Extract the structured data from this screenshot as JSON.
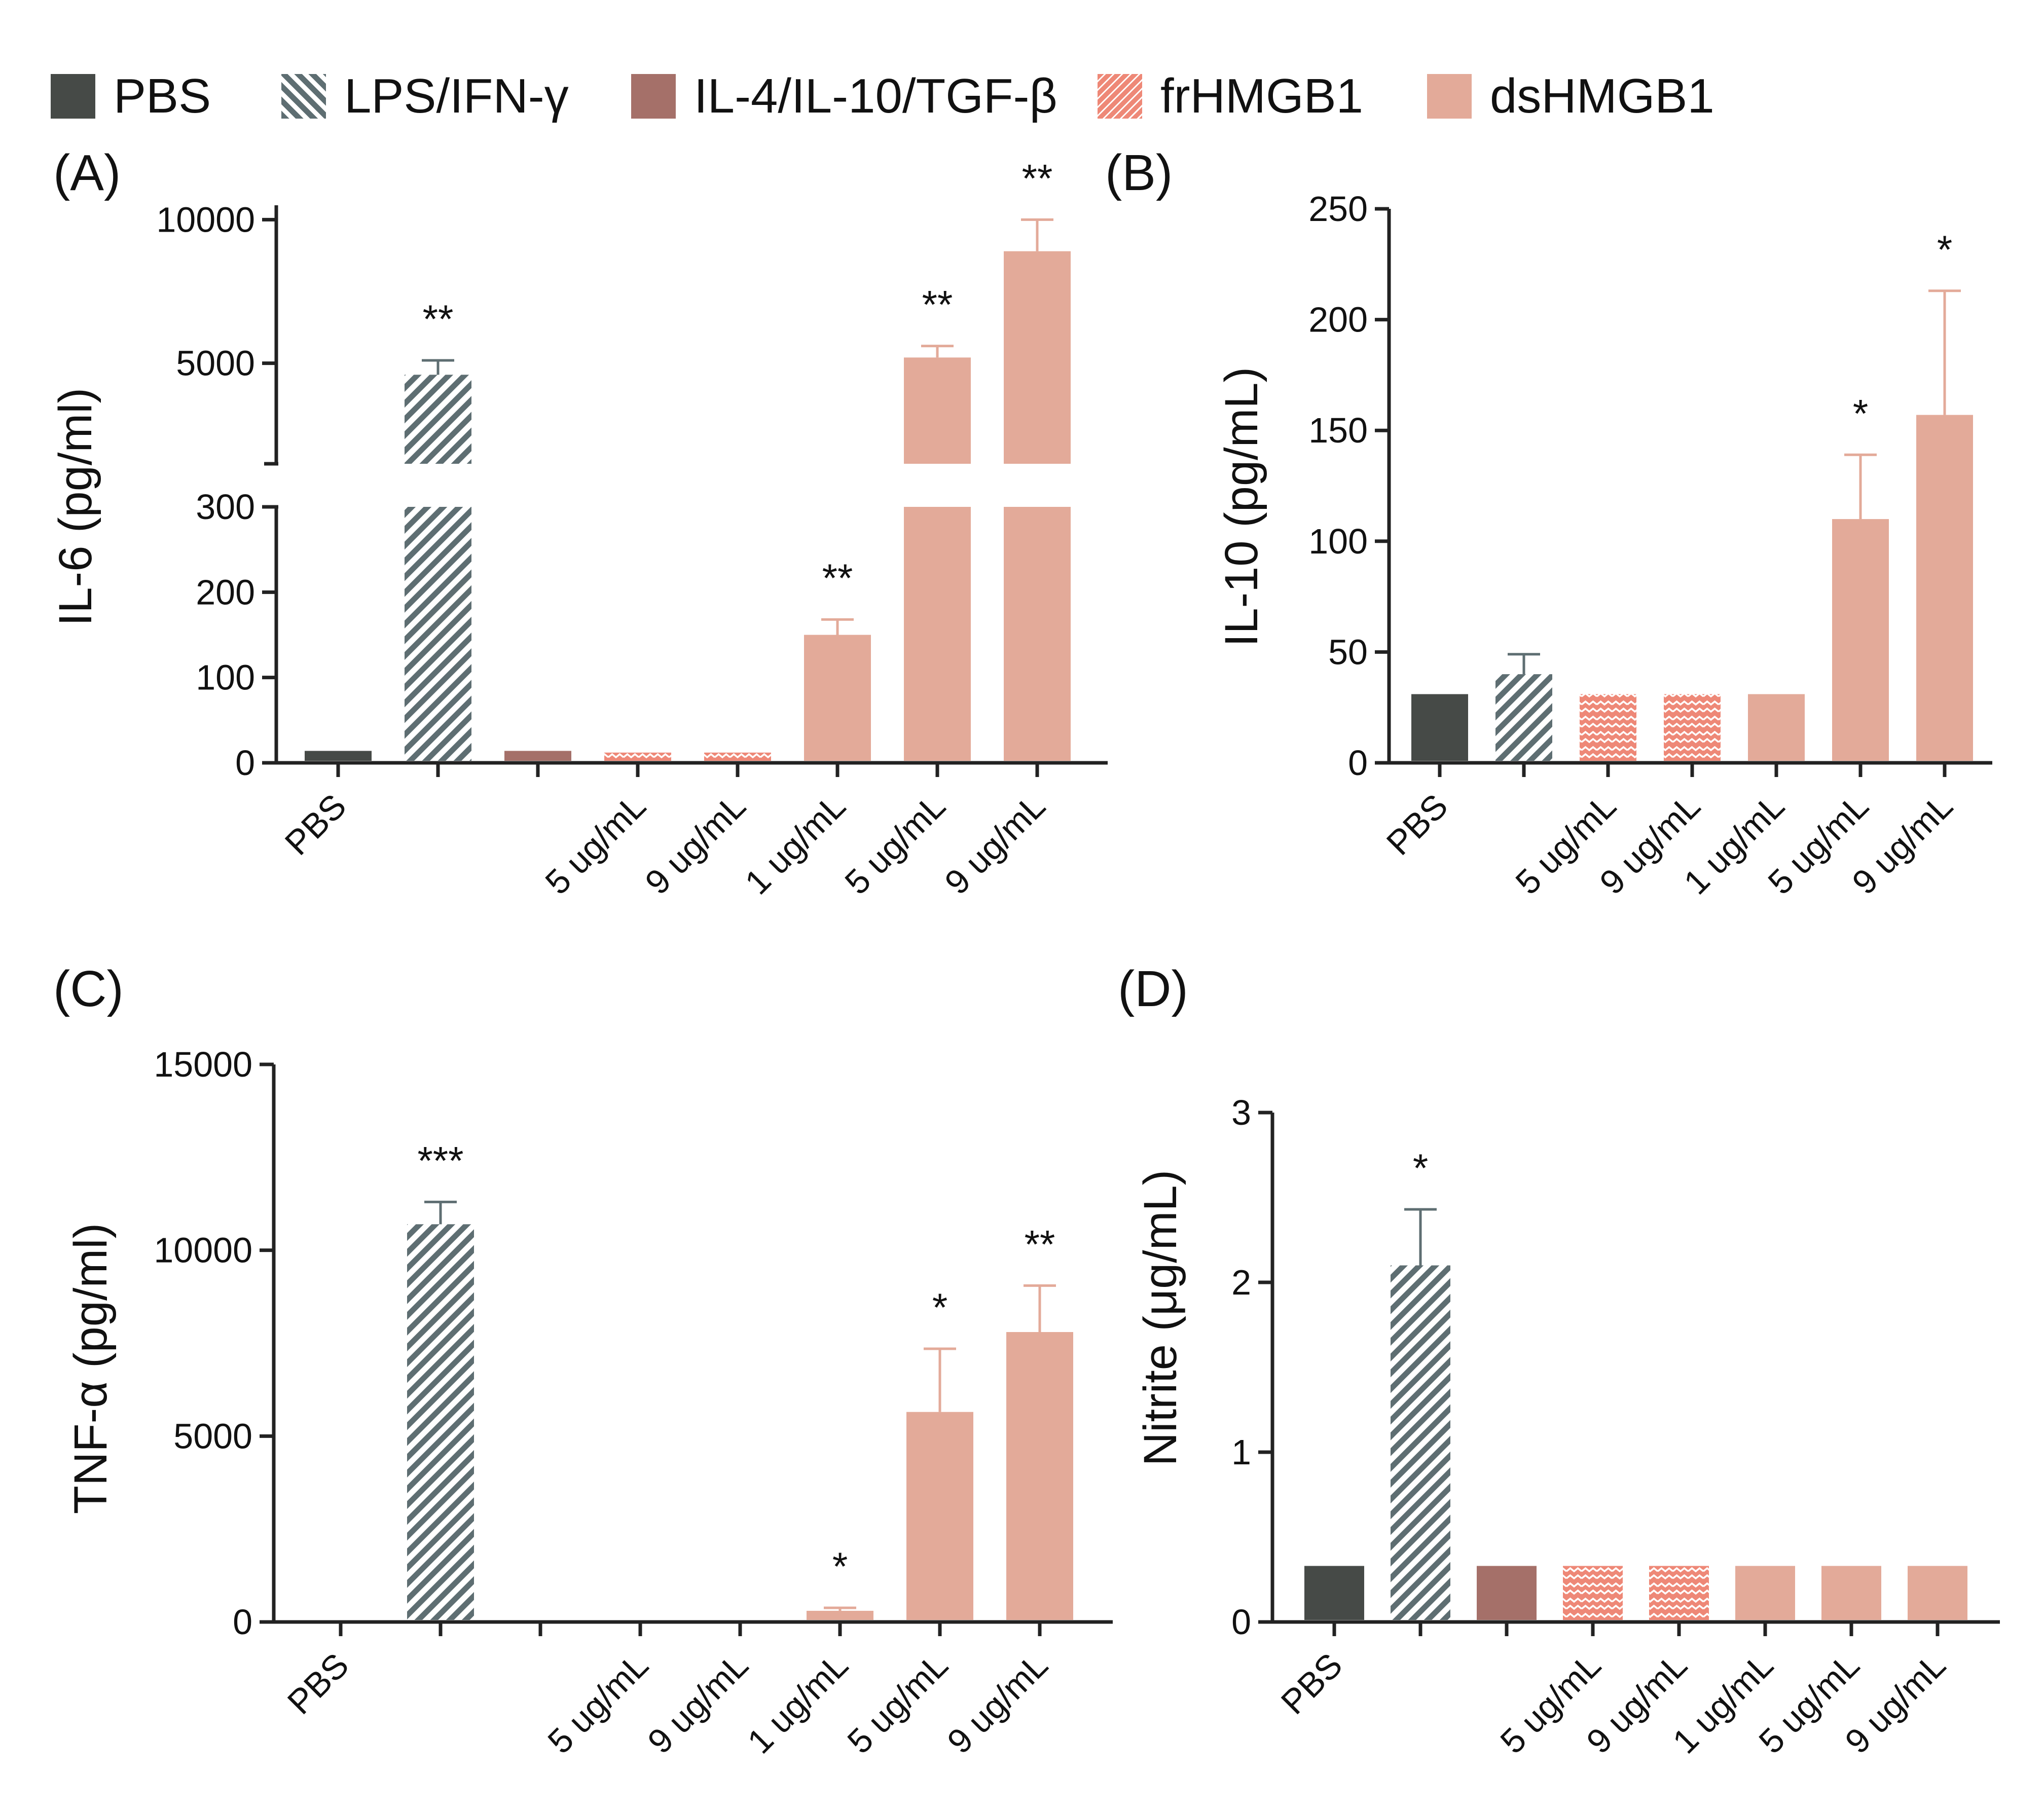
{
  "colors": {
    "PBS": "#464a47",
    "LPS": "#5e6e72",
    "IL4": "#a57069",
    "fr": "#ee8877",
    "ds": "#e3aa99"
  },
  "legend": {
    "items": [
      {
        "key": "PBS",
        "label": "PBS",
        "pattern": "solid"
      },
      {
        "key": "LPS",
        "label": "LPS/IFN-γ",
        "pattern": "stripe"
      },
      {
        "key": "IL4",
        "label": "IL-4/IL-10/TGF-β",
        "pattern": "solid"
      },
      {
        "key": "fr",
        "label": "frHMGB1",
        "pattern": "wave"
      },
      {
        "key": "ds",
        "label": "dsHMGB1",
        "pattern": "solid"
      }
    ]
  },
  "chart_data": [
    {
      "panel": "(A)",
      "type": "bar",
      "ylabel": "IL-6 (pg/ml)",
      "y_axis_break": {
        "lower_range": [
          0,
          300
        ],
        "upper_range": [
          1500,
          10500
        ]
      },
      "lower_ticks": [
        "0",
        "100",
        "200",
        "300"
      ],
      "upper_ticks": [
        "5000",
        "10000"
      ],
      "categories": [
        "PBS",
        "",
        "",
        "5 ug/mL",
        "9 ug/mL",
        "1 ug/mL",
        "5 ug/mL",
        "9 ug/mL"
      ],
      "groups": [
        "PBS",
        "LPS",
        "IL4",
        "fr",
        "fr",
        "ds",
        "ds",
        "ds"
      ],
      "values": [
        14,
        4600,
        14,
        12,
        12,
        150,
        5200,
        8900
      ],
      "errors": [
        0,
        500,
        0,
        0,
        0,
        18,
        400,
        1100
      ],
      "significance": [
        "",
        "**",
        "",
        "",
        "",
        "**",
        "**",
        "**"
      ]
    },
    {
      "panel": "(B)",
      "type": "bar",
      "ylabel": "IL-10 (pg/mL)",
      "ylim": [
        0,
        250
      ],
      "ticks": [
        "0",
        "50",
        "100",
        "150",
        "200",
        "250"
      ],
      "categories": [
        "PBS",
        "",
        "5 ug/mL",
        "9 ug/mL",
        "1 ug/mL",
        "5 ug/mL",
        "9 ug/mL"
      ],
      "groups": [
        "PBS",
        "LPS",
        "fr",
        "fr",
        "ds",
        "ds",
        "ds"
      ],
      "values": [
        31,
        40,
        31,
        31,
        31,
        110,
        157
      ],
      "errors": [
        0,
        9,
        0,
        0,
        0,
        29,
        56
      ],
      "significance": [
        "",
        "",
        "",
        "",
        "",
        "*",
        "*"
      ]
    },
    {
      "panel": "(C)",
      "type": "bar",
      "ylabel": "TNF-α (pg/ml)",
      "ylim": [
        0,
        15000
      ],
      "ticks": [
        "0",
        "5000",
        "10000",
        "15000"
      ],
      "categories": [
        "PBS",
        "",
        "",
        "5 ug/mL",
        "9 ug/mL",
        "1 ug/mL",
        "5 ug/mL",
        "9 ug/mL"
      ],
      "groups": [
        "PBS",
        "LPS",
        "IL4",
        "fr",
        "fr",
        "ds",
        "ds",
        "ds"
      ],
      "values": [
        0,
        10700,
        0,
        0,
        0,
        300,
        5650,
        7800
      ],
      "errors": [
        0,
        600,
        0,
        0,
        0,
        80,
        1700,
        1250
      ],
      "significance": [
        "",
        "***",
        "",
        "",
        "",
        "*",
        "*",
        "**"
      ]
    },
    {
      "panel": "(D)",
      "type": "bar",
      "ylabel": "Nitrite (μg/mL)",
      "ylim": [
        0,
        3
      ],
      "ticks": [
        "0",
        "1",
        "2",
        "3"
      ],
      "categories": [
        "PBS",
        "",
        "",
        "5 ug/mL",
        "9 ug/mL",
        "1 ug/mL",
        "5 ug/mL",
        "9 ug/mL"
      ],
      "groups": [
        "PBS",
        "LPS",
        "IL4",
        "fr",
        "fr",
        "ds",
        "ds",
        "ds"
      ],
      "values": [
        0.33,
        2.1,
        0.33,
        0.33,
        0.33,
        0.33,
        0.33,
        0.33
      ],
      "errors": [
        0,
        0.33,
        0,
        0,
        0,
        0,
        0,
        0
      ],
      "significance": [
        "",
        "*",
        "",
        "",
        "",
        "",
        "",
        ""
      ]
    }
  ]
}
